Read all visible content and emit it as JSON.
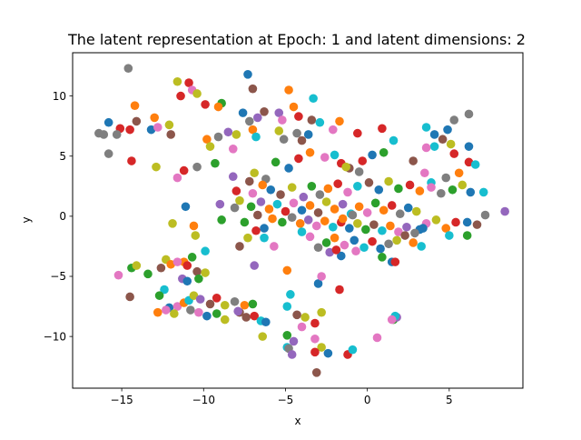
{
  "chart_data": {
    "type": "scatter",
    "title": "The latent representation at Epoch: 1 and latent dimensions: 2",
    "xlabel": "x",
    "ylabel": "y",
    "xlim": [
      -18,
      9.5
    ],
    "ylim": [
      -14.3,
      13.6
    ],
    "xticks": [
      -15,
      -10,
      -5,
      0,
      5
    ],
    "xtick_labels": [
      "−15",
      "−10",
      "−5",
      "0",
      "5"
    ],
    "yticks": [
      -10,
      -5,
      0,
      5,
      10
    ],
    "ytick_labels": [
      "−10",
      "−5",
      "0",
      "5",
      "10"
    ],
    "grid": false,
    "legend": "none",
    "colors": [
      "#1f77b4",
      "#ff7f0e",
      "#2ca02c",
      "#d62728",
      "#9467bd",
      "#8c564b",
      "#e377c2",
      "#7f7f7f",
      "#bcbd22",
      "#17becf"
    ],
    "points": [
      [
        -14.6,
        12.3,
        7
      ],
      [
        -11.6,
        11.2,
        8
      ],
      [
        -10.9,
        11.1,
        3
      ],
      [
        -10.7,
        10.5,
        6
      ],
      [
        -10.4,
        10.2,
        8
      ],
      [
        -11.4,
        10.0,
        3
      ],
      [
        -7.3,
        11.8,
        0
      ],
      [
        -7.0,
        10.6,
        5
      ],
      [
        -4.8,
        10.5,
        1
      ],
      [
        -3.3,
        9.8,
        9
      ],
      [
        -4.5,
        9.1,
        1
      ],
      [
        -4.2,
        8.3,
        3
      ],
      [
        -9.9,
        9.3,
        3
      ],
      [
        -8.9,
        9.4,
        2
      ],
      [
        -9.1,
        9.1,
        1
      ],
      [
        -7.6,
        8.6,
        0
      ],
      [
        -6.3,
        8.7,
        5
      ],
      [
        -5.4,
        8.6,
        4
      ],
      [
        -6.7,
        8.2,
        4
      ],
      [
        -7.2,
        7.9,
        7
      ],
      [
        -5.2,
        8.0,
        6
      ],
      [
        -3.4,
        8.0,
        5
      ],
      [
        -2.9,
        7.8,
        9
      ],
      [
        -1.7,
        7.9,
        1
      ],
      [
        -15.8,
        7.8,
        0
      ],
      [
        -14.2,
        9.2,
        1
      ],
      [
        -13.0,
        8.2,
        1
      ],
      [
        -14.1,
        7.9,
        5
      ],
      [
        -15.1,
        7.3,
        3
      ],
      [
        -16.4,
        6.9,
        7
      ],
      [
        -14.5,
        7.2,
        3
      ],
      [
        -12.1,
        7.6,
        8
      ],
      [
        -12.0,
        6.8,
        5
      ],
      [
        -13.2,
        7.2,
        0
      ],
      [
        -12.8,
        7.4,
        6
      ],
      [
        -16.1,
        6.8,
        7
      ],
      [
        -15.3,
        6.8,
        7
      ],
      [
        -15.8,
        5.2,
        7
      ],
      [
        -14.4,
        4.6,
        3
      ],
      [
        -12.9,
        4.1,
        8
      ],
      [
        -11.6,
        3.2,
        6
      ],
      [
        -11.2,
        3.8,
        3
      ],
      [
        -10.4,
        4.1,
        7
      ],
      [
        -9.3,
        4.4,
        2
      ],
      [
        -9.8,
        6.4,
        1
      ],
      [
        -9.1,
        6.6,
        7
      ],
      [
        -8.5,
        7.0,
        4
      ],
      [
        -8.0,
        6.8,
        8
      ],
      [
        -9.6,
        5.8,
        8
      ],
      [
        -8.2,
        5.6,
        6
      ],
      [
        -7.0,
        7.2,
        1
      ],
      [
        -6.8,
        6.6,
        9
      ],
      [
        -5.4,
        7.1,
        8
      ],
      [
        -4.3,
        6.9,
        7
      ],
      [
        -3.6,
        6.8,
        0
      ],
      [
        -4.0,
        6.3,
        5
      ],
      [
        -5.1,
        6.4,
        7
      ],
      [
        -2.1,
        7.2,
        6
      ],
      [
        -0.6,
        6.9,
        3
      ],
      [
        0.9,
        7.3,
        3
      ],
      [
        3.6,
        7.4,
        9
      ],
      [
        4.1,
        6.8,
        0
      ],
      [
        4.9,
        7.2,
        0
      ],
      [
        4.6,
        6.4,
        5
      ],
      [
        5.3,
        8.0,
        7
      ],
      [
        6.2,
        8.5,
        7
      ],
      [
        5.1,
        6.0,
        8
      ],
      [
        6.2,
        5.8,
        0
      ],
      [
        5.3,
        5.2,
        3
      ],
      [
        4.1,
        5.8,
        9
      ],
      [
        3.6,
        5.7,
        6
      ],
      [
        2.8,
        4.6,
        5
      ],
      [
        1.6,
        6.3,
        9
      ],
      [
        1.0,
        5.3,
        2
      ],
      [
        0.3,
        5.1,
        0
      ],
      [
        -0.3,
        4.6,
        3
      ],
      [
        -1.1,
        4.0,
        5
      ],
      [
        -1.6,
        4.4,
        3
      ],
      [
        6.2,
        4.5,
        3
      ],
      [
        6.6,
        4.3,
        9
      ],
      [
        5.6,
        3.6,
        1
      ],
      [
        4.8,
        3.2,
        7
      ],
      [
        3.5,
        3.6,
        6
      ],
      [
        3.9,
        2.8,
        9
      ],
      [
        -7.2,
        2.9,
        5
      ],
      [
        -8.2,
        3.3,
        4
      ],
      [
        -6.9,
        3.6,
        8
      ],
      [
        -6.2,
        3.1,
        7
      ],
      [
        -5.6,
        4.5,
        2
      ],
      [
        -4.8,
        4.0,
        0
      ],
      [
        -4.2,
        4.8,
        3
      ],
      [
        -3.5,
        5.3,
        1
      ],
      [
        -2.6,
        4.9,
        6
      ],
      [
        -2.0,
        5.1,
        9
      ],
      [
        -1.3,
        4.1,
        8
      ],
      [
        -0.5,
        3.7,
        7
      ],
      [
        -8.0,
        2.1,
        3
      ],
      [
        -7.0,
        1.9,
        6
      ],
      [
        -6.4,
        2.6,
        1
      ],
      [
        -5.9,
        2.2,
        0
      ],
      [
        -5.3,
        1.8,
        5
      ],
      [
        -4.6,
        2.4,
        8
      ],
      [
        -3.9,
        1.6,
        4
      ],
      [
        -3.4,
        2.5,
        2
      ],
      [
        -2.9,
        1.8,
        7
      ],
      [
        -2.4,
        2.3,
        1
      ],
      [
        -1.8,
        2.7,
        3
      ],
      [
        -1.2,
        2.0,
        6
      ],
      [
        -0.6,
        2.5,
        9
      ],
      [
        0.1,
        2.8,
        5
      ],
      [
        0.7,
        2.2,
        0
      ],
      [
        1.3,
        2.9,
        8
      ],
      [
        1.9,
        2.3,
        2
      ],
      [
        2.6,
        2.6,
        3
      ],
      [
        3.2,
        2.1,
        1
      ],
      [
        3.9,
        2.4,
        6
      ],
      [
        4.5,
        1.9,
        7
      ],
      [
        5.2,
        2.2,
        2
      ],
      [
        5.8,
        2.6,
        8
      ],
      [
        6.3,
        2.0,
        0
      ],
      [
        7.1,
        2.0,
        9
      ],
      [
        8.4,
        0.4,
        4
      ],
      [
        7.2,
        0.1,
        7
      ],
      [
        6.7,
        -0.7,
        5
      ],
      [
        6.1,
        -0.5,
        0
      ],
      [
        5.4,
        -0.5,
        3
      ],
      [
        4.8,
        -1.0,
        1
      ],
      [
        5.0,
        -1.6,
        9
      ],
      [
        6.1,
        -1.6,
        2
      ],
      [
        4.2,
        -0.3,
        8
      ],
      [
        3.6,
        -0.6,
        6
      ],
      [
        3.2,
        -1.1,
        0
      ],
      [
        -7.8,
        1.3,
        8
      ],
      [
        -7.1,
        0.8,
        2
      ],
      [
        -6.5,
        1.2,
        4
      ],
      [
        -6.0,
        0.6,
        1
      ],
      [
        -5.5,
        1.0,
        9
      ],
      [
        -5.0,
        0.4,
        3
      ],
      [
        -4.5,
        1.1,
        6
      ],
      [
        -4.0,
        0.5,
        0
      ],
      [
        -3.5,
        0.9,
        1
      ],
      [
        -3.0,
        0.3,
        5
      ],
      [
        -2.5,
        1.2,
        8
      ],
      [
        -2.0,
        0.6,
        1
      ],
      [
        -1.5,
        1.0,
        4
      ],
      [
        -1.0,
        0.2,
        9
      ],
      [
        -0.5,
        0.8,
        1
      ],
      [
        0.0,
        0.3,
        6
      ],
      [
        0.5,
        1.1,
        2
      ],
      [
        1.0,
        0.5,
        1
      ],
      [
        1.5,
        0.9,
        3
      ],
      [
        2.0,
        0.2,
        7
      ],
      [
        2.5,
        0.7,
        0
      ],
      [
        3.0,
        0.4,
        8
      ],
      [
        -6.7,
        0.1,
        5
      ],
      [
        -5.8,
        -0.2,
        1
      ],
      [
        -5.2,
        -0.5,
        2
      ],
      [
        -4.6,
        -0.1,
        7
      ],
      [
        -4.1,
        -0.6,
        1
      ],
      [
        -3.6,
        -0.3,
        4
      ],
      [
        -3.1,
        -0.8,
        6
      ],
      [
        -2.6,
        -0.4,
        1
      ],
      [
        -2.1,
        -0.9,
        9
      ],
      [
        -1.6,
        -0.5,
        3
      ],
      [
        -1.1,
        -1.0,
        0
      ],
      [
        -0.6,
        -0.6,
        8
      ],
      [
        -0.1,
        -1.1,
        2
      ],
      [
        0.4,
        -0.7,
        5
      ],
      [
        0.9,
        -1.2,
        9
      ],
      [
        1.4,
        -0.8,
        1
      ],
      [
        1.9,
        -1.3,
        6
      ],
      [
        2.4,
        -0.9,
        4
      ],
      [
        2.9,
        -1.4,
        7
      ],
      [
        3.4,
        -1.0,
        0
      ],
      [
        -4.0,
        -1.3,
        9
      ],
      [
        -3.5,
        -1.7,
        6
      ],
      [
        -3.0,
        -2.6,
        7
      ],
      [
        -2.5,
        -2.2,
        2
      ],
      [
        -2.0,
        -1.8,
        1
      ],
      [
        -1.4,
        -2.4,
        6
      ],
      [
        -0.8,
        -2.0,
        0
      ],
      [
        -0.2,
        -2.6,
        9
      ],
      [
        0.3,
        -2.1,
        3
      ],
      [
        0.8,
        -2.7,
        0
      ],
      [
        1.3,
        -2.3,
        7
      ],
      [
        1.8,
        -2.0,
        8
      ],
      [
        2.3,
        -1.6,
        5
      ],
      [
        2.8,
        -2.2,
        1
      ],
      [
        3.3,
        -2.5,
        9
      ],
      [
        -2.3,
        -3.0,
        4
      ],
      [
        -1.6,
        -3.3,
        0
      ],
      [
        -0.7,
        -2.9,
        6
      ],
      [
        -1.9,
        -2.8,
        3
      ],
      [
        0.9,
        -3.4,
        2
      ],
      [
        1.5,
        -3.8,
        0
      ],
      [
        1.7,
        -3.8,
        3
      ],
      [
        -1.5,
        -0.2,
        1
      ],
      [
        -0.9,
        0.1,
        7
      ],
      [
        -11.1,
        0.8,
        0
      ],
      [
        -11.9,
        -0.6,
        8
      ],
      [
        -10.6,
        -0.8,
        1
      ],
      [
        -8.9,
        -0.3,
        2
      ],
      [
        -9.0,
        1.0,
        4
      ],
      [
        -8.1,
        0.7,
        7
      ],
      [
        -7.5,
        -0.5,
        2
      ],
      [
        -6.3,
        -1.0,
        0
      ],
      [
        -6.8,
        -1.2,
        3
      ],
      [
        -7.3,
        -1.8,
        8
      ],
      [
        -6.3,
        -1.8,
        9
      ],
      [
        -5.7,
        -2.5,
        6
      ],
      [
        -9.9,
        -2.9,
        9
      ],
      [
        -10.7,
        -3.4,
        2
      ],
      [
        -11.2,
        -3.8,
        1
      ],
      [
        -10.5,
        -1.6,
        8
      ],
      [
        -7.8,
        -2.5,
        5
      ],
      [
        -6.9,
        -4.1,
        4
      ],
      [
        -15.2,
        -4.9,
        6
      ],
      [
        -14.4,
        -4.3,
        2
      ],
      [
        -14.1,
        -4.1,
        8
      ],
      [
        -13.4,
        -4.8,
        2
      ],
      [
        -12.6,
        -4.3,
        5
      ],
      [
        -12.3,
        -3.6,
        8
      ],
      [
        -12.0,
        -4.0,
        1
      ],
      [
        -11.6,
        -3.8,
        6
      ],
      [
        -11.0,
        -4.1,
        3
      ],
      [
        -10.4,
        -4.6,
        5
      ],
      [
        -11.3,
        -5.2,
        4
      ],
      [
        -11.0,
        -5.4,
        0
      ],
      [
        -10.3,
        -5.2,
        2
      ],
      [
        -9.9,
        -4.7,
        8
      ],
      [
        -12.4,
        -6.1,
        9
      ],
      [
        -12.7,
        -6.6,
        2
      ],
      [
        -14.5,
        -6.7,
        5
      ],
      [
        -12.1,
        -7.6,
        0
      ],
      [
        -11.6,
        -7.5,
        6
      ],
      [
        -11.2,
        -7.2,
        1
      ],
      [
        -10.9,
        -7.0,
        9
      ],
      [
        -10.6,
        -6.6,
        8
      ],
      [
        -10.2,
        -6.9,
        4
      ],
      [
        -9.6,
        -7.3,
        5
      ],
      [
        -9.2,
        -6.8,
        3
      ],
      [
        -8.7,
        -7.4,
        8
      ],
      [
        -8.1,
        -7.1,
        7
      ],
      [
        -7.8,
        -8.0,
        5
      ],
      [
        -7.5,
        -7.4,
        1
      ],
      [
        -7.0,
        -7.3,
        2
      ],
      [
        -12.8,
        -8.0,
        1
      ],
      [
        -12.3,
        -7.8,
        6
      ],
      [
        -11.8,
        -8.1,
        8
      ],
      [
        -10.8,
        -7.8,
        7
      ],
      [
        -10.3,
        -8.0,
        6
      ],
      [
        -9.8,
        -8.3,
        0
      ],
      [
        -9.2,
        -8.1,
        2
      ],
      [
        -8.7,
        -8.6,
        8
      ],
      [
        -7.9,
        -7.9,
        4
      ],
      [
        -7.4,
        -8.4,
        5
      ],
      [
        -6.9,
        -8.3,
        3
      ],
      [
        -6.5,
        -8.7,
        9
      ],
      [
        -6.2,
        -8.8,
        0
      ],
      [
        -4.9,
        -4.5,
        1
      ],
      [
        -4.7,
        -6.5,
        9
      ],
      [
        -3.0,
        -5.6,
        0
      ],
      [
        -2.8,
        -5.0,
        6
      ],
      [
        -1.7,
        -6.1,
        3
      ],
      [
        -4.3,
        -8.2,
        5
      ],
      [
        -3.8,
        -8.4,
        8
      ],
      [
        -3.2,
        -8.9,
        3
      ],
      [
        -2.8,
        -8.0,
        8
      ],
      [
        -4.9,
        -7.5,
        9
      ],
      [
        -4.0,
        -9.2,
        6
      ],
      [
        -4.5,
        -10.4,
        4
      ],
      [
        -3.2,
        -10.2,
        6
      ],
      [
        -2.8,
        -10.9,
        8
      ],
      [
        -2.4,
        -11.4,
        0
      ],
      [
        -3.2,
        -11.3,
        3
      ],
      [
        -3.1,
        -13.0,
        5
      ],
      [
        -4.9,
        -10.9,
        9
      ],
      [
        -4.8,
        -11.0,
        7
      ],
      [
        -4.6,
        -11.5,
        4
      ],
      [
        -4.9,
        -9.9,
        2
      ],
      [
        -6.4,
        -10.0,
        8
      ],
      [
        -1.2,
        -11.5,
        3
      ],
      [
        -0.9,
        -11.1,
        9
      ],
      [
        0.6,
        -10.1,
        6
      ],
      [
        1.6,
        -8.6,
        2
      ],
      [
        1.8,
        -8.4,
        4
      ],
      [
        1.7,
        -8.3,
        9
      ],
      [
        1.5,
        -8.6,
        6
      ]
    ]
  }
}
